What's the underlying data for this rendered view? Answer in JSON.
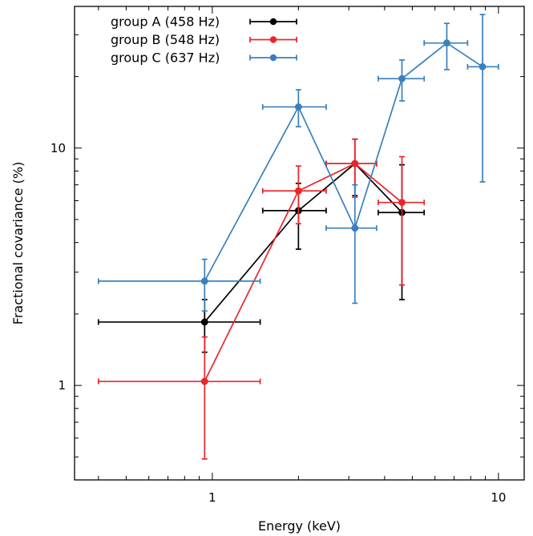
{
  "chart_data": {
    "type": "line",
    "title": "",
    "xlabel": "Energy (keV)",
    "ylabel": "Fractional covariance (%)",
    "xscale": "log",
    "yscale": "log",
    "xlim": [
      0.33,
      12.3
    ],
    "ylim": [
      0.4,
      39.5
    ],
    "x_tick_labels": [
      {
        "value": 1,
        "label": "1"
      },
      {
        "value": 10,
        "label": "10"
      }
    ],
    "y_tick_labels": [
      {
        "value": 1,
        "label": "1"
      },
      {
        "value": 10,
        "label": "10"
      }
    ],
    "legend_position": "top-left",
    "grid": false,
    "series": [
      {
        "name": "group A (458 Hz)",
        "color": "#000000",
        "points": [
          {
            "x": 0.94,
            "xlo": 0.4,
            "xhi": 1.47,
            "y": 1.85,
            "ylo": 1.38,
            "yhi": 2.3
          },
          {
            "x": 2.0,
            "xlo": 1.5,
            "xhi": 2.5,
            "y": 5.45,
            "ylo": 3.75,
            "yhi": 7.1
          },
          {
            "x": 3.15,
            "xlo": 2.5,
            "xhi": 3.75,
            "y": 8.6,
            "ylo": 6.3,
            "yhi": 10.9
          },
          {
            "x": 4.6,
            "xlo": 3.8,
            "xhi": 5.5,
            "y": 5.35,
            "ylo": 2.3,
            "yhi": 8.5
          }
        ]
      },
      {
        "name": "group B (548 Hz)",
        "color": "#e8262a",
        "points": [
          {
            "x": 0.94,
            "xlo": 0.4,
            "xhi": 1.47,
            "y": 1.04,
            "ylo": 0.49,
            "yhi": 1.6
          },
          {
            "x": 2.0,
            "xlo": 1.5,
            "xhi": 2.5,
            "y": 6.6,
            "ylo": 4.8,
            "yhi": 8.4
          },
          {
            "x": 3.15,
            "xlo": 2.5,
            "xhi": 3.75,
            "y": 8.6,
            "ylo": 6.2,
            "yhi": 10.9
          },
          {
            "x": 4.6,
            "xlo": 3.8,
            "xhi": 5.5,
            "y": 5.9,
            "ylo": 2.65,
            "yhi": 9.2
          }
        ]
      },
      {
        "name": "group C (637 Hz)",
        "color": "#3a7fbd",
        "points": [
          {
            "x": 0.94,
            "xlo": 0.4,
            "xhi": 1.47,
            "y": 2.75,
            "ylo": 2.06,
            "yhi": 3.4
          },
          {
            "x": 2.0,
            "xlo": 1.5,
            "xhi": 2.5,
            "y": 14.9,
            "ylo": 12.3,
            "yhi": 17.6
          },
          {
            "x": 3.15,
            "xlo": 2.5,
            "xhi": 3.75,
            "y": 4.6,
            "ylo": 2.22,
            "yhi": 7.0
          },
          {
            "x": 4.6,
            "xlo": 3.8,
            "xhi": 5.5,
            "y": 19.6,
            "ylo": 15.8,
            "yhi": 23.5
          },
          {
            "x": 6.6,
            "xlo": 5.5,
            "xhi": 7.8,
            "y": 27.7,
            "ylo": 21.4,
            "yhi": 33.5
          },
          {
            "x": 8.8,
            "xlo": 7.8,
            "xhi": 10.0,
            "y": 22.0,
            "ylo": 7.2,
            "yhi": 36.5
          }
        ]
      }
    ]
  }
}
